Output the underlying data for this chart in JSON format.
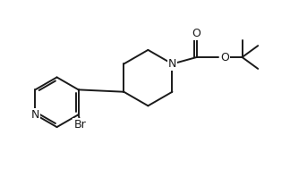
{
  "background_color": "#ffffff",
  "line_color": "#1a1a1a",
  "line_width": 1.4,
  "font_size": 8.5,
  "figsize": [
    3.24,
    1.98
  ],
  "dpi": 100,
  "xlim": [
    0,
    9.5
  ],
  "ylim": [
    0,
    5.6
  ]
}
